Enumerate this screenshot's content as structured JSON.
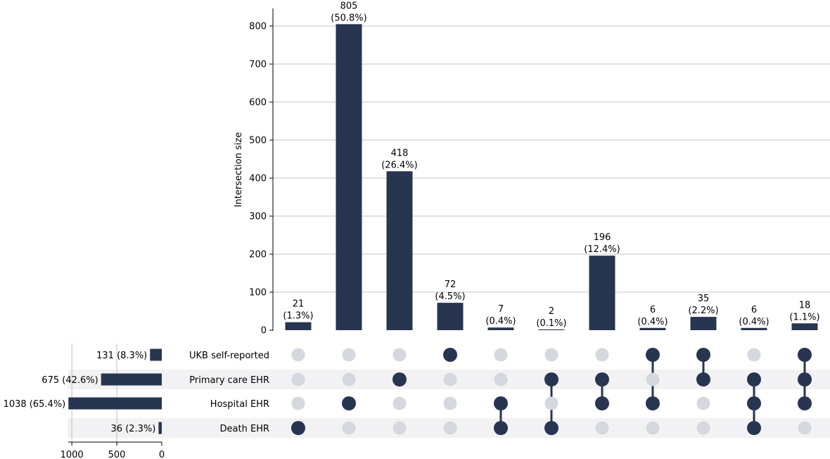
{
  "chart_data": {
    "type": "upset",
    "ylabel": "Intersection size",
    "ylim": [
      0,
      800
    ],
    "yticks": [
      "0",
      "100",
      "200",
      "300",
      "400",
      "500",
      "600",
      "700",
      "800"
    ],
    "grid": true,
    "sets": [
      {
        "name": "UKB self-reported",
        "size": 131,
        "label": "131 (8.3%)"
      },
      {
        "name": "Primary care EHR",
        "size": 675,
        "label": "675 (42.6%)"
      },
      {
        "name": "Hospital EHR",
        "size": 1038,
        "label": "1038 (65.4%)"
      },
      {
        "name": "Death EHR",
        "size": 36,
        "label": "36 (2.3%)"
      }
    ],
    "set_size_ticks": [
      "1000",
      "500",
      "0"
    ],
    "intersections": [
      {
        "members": [
          "Death EHR"
        ],
        "value": 21,
        "count_label": "21",
        "pct_label": "(1.3%)"
      },
      {
        "members": [
          "Hospital EHR"
        ],
        "value": 805,
        "count_label": "805",
        "pct_label": "(50.8%)"
      },
      {
        "members": [
          "Primary care EHR"
        ],
        "value": 418,
        "count_label": "418",
        "pct_label": "(26.4%)"
      },
      {
        "members": [
          "UKB self-reported"
        ],
        "value": 72,
        "count_label": "72",
        "pct_label": "(4.5%)"
      },
      {
        "members": [
          "Hospital EHR",
          "Death EHR"
        ],
        "value": 7,
        "count_label": "7",
        "pct_label": "(0.4%)"
      },
      {
        "members": [
          "Primary care EHR",
          "Death EHR"
        ],
        "value": 2,
        "count_label": "2",
        "pct_label": "(0.1%)"
      },
      {
        "members": [
          "Primary care EHR",
          "Hospital EHR"
        ],
        "value": 196,
        "count_label": "196",
        "pct_label": "(12.4%)"
      },
      {
        "members": [
          "UKB self-reported",
          "Hospital EHR"
        ],
        "value": 6,
        "count_label": "6",
        "pct_label": "(0.4%)"
      },
      {
        "members": [
          "UKB self-reported",
          "Primary care EHR"
        ],
        "value": 35,
        "count_label": "35",
        "pct_label": "(2.2%)"
      },
      {
        "members": [
          "Primary care EHR",
          "Hospital EHR",
          "Death EHR"
        ],
        "value": 6,
        "count_label": "6",
        "pct_label": "(0.4%)"
      },
      {
        "members": [
          "UKB self-reported",
          "Primary care EHR",
          "Hospital EHR"
        ],
        "value": 18,
        "count_label": "18",
        "pct_label": "(1.1%)"
      }
    ],
    "colors": {
      "bar": "#283550",
      "dot_active": "#283550",
      "dot_inactive": "#d5d8de",
      "stripe": "#f2f2f4",
      "grid": "#b0b0b0"
    }
  }
}
